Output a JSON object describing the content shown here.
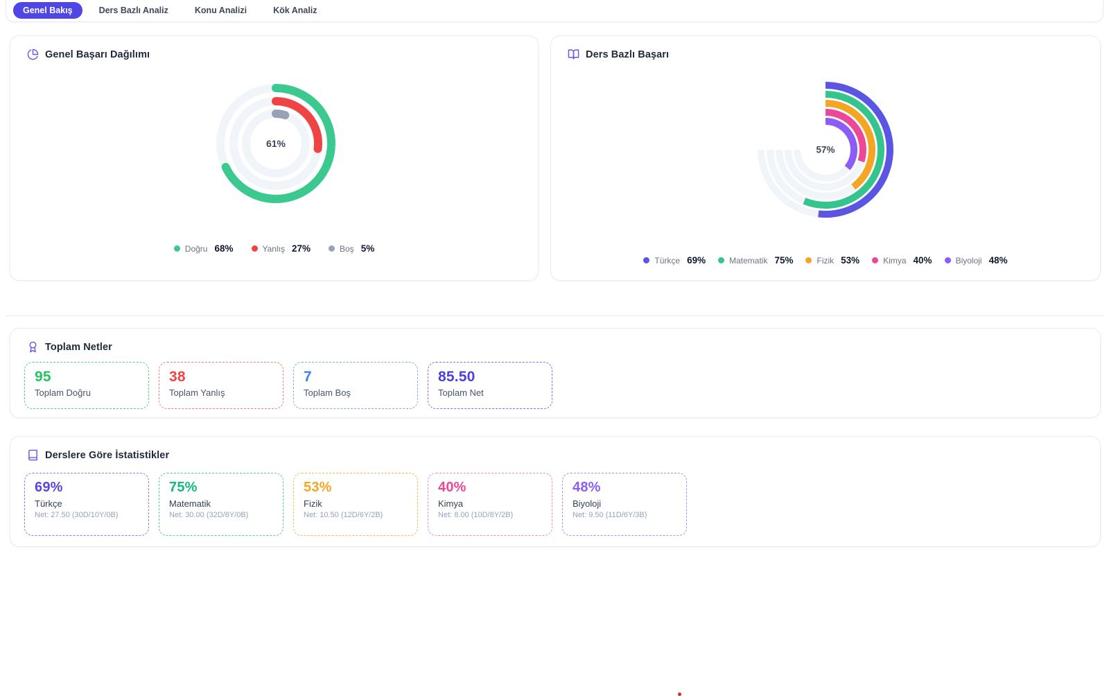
{
  "page": {
    "accent": "#4f46e5",
    "divider_color": "#e7e9ee",
    "red_dot_color": "#dc2626"
  },
  "tabs": [
    {
      "label": "Genel Bakış",
      "active": true
    },
    {
      "label": "Ders Bazlı Analiz"
    },
    {
      "label": "Konu Analizi"
    },
    {
      "label": "Kök Analiz"
    }
  ],
  "chart_data": [
    {
      "type": "radialBar",
      "title": "Genel Başarı Dağılımı",
      "icon": "pie-chart-icon",
      "center_label": "61%",
      "total_angle": 360,
      "start_angle": 0,
      "linecap": "round",
      "stroke_width": 12,
      "track_color": "#f1f5f9",
      "size": 200,
      "legend_position": "bottom",
      "series": [
        {
          "name": "Doğru",
          "pct": 68,
          "display": "68%",
          "color": "#3bc98f",
          "radius": 80
        },
        {
          "name": "Yanlış",
          "pct": 27,
          "display": "27%",
          "color": "#ef4444",
          "radius": 61
        },
        {
          "name": "Boş",
          "pct": 5,
          "display": "5%",
          "color": "#97a3b4",
          "radius": 43
        }
      ]
    },
    {
      "type": "radialBar",
      "title": "Ders Bazlı Başarı",
      "icon": "book-open-icon",
      "center_label": "57%",
      "total_angle": 270,
      "start_angle": 0,
      "linecap": "butt",
      "stroke_width": 10,
      "track_color": "#f1f5f9",
      "size": 210,
      "legend_position": "bottom",
      "series": [
        {
          "name": "Türkçe",
          "pct": 69,
          "display": "69%",
          "color": "#5b55e3",
          "radius": 93
        },
        {
          "name": "Matematik",
          "pct": 75,
          "display": "75%",
          "color": "#34c48e",
          "radius": 80
        },
        {
          "name": "Fizik",
          "pct": 53,
          "display": "53%",
          "color": "#f5a524",
          "radius": 67
        },
        {
          "name": "Kimya",
          "pct": 40,
          "display": "40%",
          "color": "#ec4899",
          "radius": 54
        },
        {
          "name": "Biyoloji",
          "pct": 48,
          "display": "48%",
          "color": "#8b5cf6",
          "radius": 41
        }
      ]
    }
  ],
  "totals": {
    "title": "Toplam Netler",
    "icon": "award-icon",
    "items": [
      {
        "value": "95",
        "label": "Toplam Doğru",
        "color": "#22c55e",
        "border": "#53d08b"
      },
      {
        "value": "38",
        "label": "Toplam Yanlış",
        "color": "#ef4444",
        "border": "#f08177"
      },
      {
        "value": "7",
        "label": "Toplam Boş",
        "color": "#3b82f6",
        "border": "#82aaf4"
      },
      {
        "value": "85.50",
        "label": "Toplam Net",
        "color": "#4c40df",
        "border": "#7a73ea"
      }
    ]
  },
  "subject_stats": {
    "title": "Derslere Göre İstatistikler",
    "icon": "book-icon",
    "items": [
      {
        "value": "69%",
        "name": "Türkçe",
        "net": "Net: 27.50 (30D/10Y/0B)",
        "color": "#5646e0",
        "border": "#8d7bf0"
      },
      {
        "value": "75%",
        "name": "Matematik",
        "net": "Net: 30.00 (32D/8Y/0B)",
        "color": "#10b981",
        "border": "#52cfa0"
      },
      {
        "value": "53%",
        "name": "Fizik",
        "net": "Net: 10.50 (12D/6Y/2B)",
        "color": "#f5a524",
        "border": "#f3bc55"
      },
      {
        "value": "40%",
        "name": "Kimya",
        "net": "Net: 8.00 (10D/8Y/2B)",
        "color": "#ec4899",
        "border": "#f28bbf"
      },
      {
        "value": "48%",
        "name": "Biyoloji",
        "net": "Net: 9.50 (11D/6Y/3B)",
        "color": "#8b5cf6",
        "border": "#a98ef5"
      }
    ]
  }
}
